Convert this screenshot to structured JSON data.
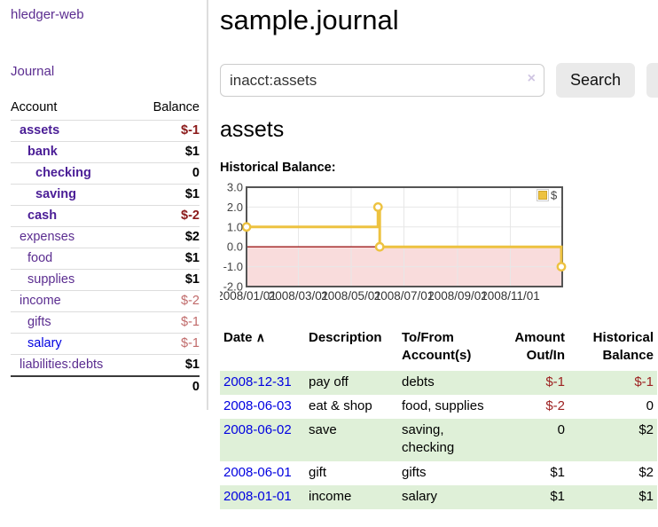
{
  "app": {
    "title": "hledger-web"
  },
  "sidebar": {
    "journal_link": "Journal",
    "accounts": {
      "header_account": "Account",
      "header_balance": "Balance",
      "rows": [
        {
          "name": "assets",
          "balance": "$-1"
        },
        {
          "name": "bank",
          "balance": "$1"
        },
        {
          "name": "checking",
          "balance": "0"
        },
        {
          "name": "saving",
          "balance": "$1"
        },
        {
          "name": "cash",
          "balance": "$-2"
        },
        {
          "name": "expenses",
          "balance": "$2"
        },
        {
          "name": "food",
          "balance": "$1"
        },
        {
          "name": "supplies",
          "balance": "$1"
        },
        {
          "name": "income",
          "balance": "$-2"
        },
        {
          "name": "gifts",
          "balance": "$-1"
        },
        {
          "name": "salary",
          "balance": "$-1"
        },
        {
          "name": "liabilities:debts",
          "balance": "$1"
        }
      ],
      "total": "0"
    }
  },
  "main": {
    "title": "sample.journal",
    "account_heading": "assets",
    "chart_label": "Historical Balance:"
  },
  "search": {
    "value": "inacct:assets",
    "clear_icon": "×",
    "button_label": "Search",
    "help_label": "?"
  },
  "chart_data": {
    "type": "line",
    "subtype": "step-after",
    "title": "Historical Balance",
    "series": [
      {
        "name": "$",
        "color": "#edc240",
        "points": [
          [
            "2008-01-01",
            1
          ],
          [
            "2008-06-01",
            2
          ],
          [
            "2008-06-03",
            0
          ],
          [
            "2008-12-31",
            -1
          ]
        ]
      }
    ],
    "x_range": [
      "2008-01-01",
      "2008-12-31"
    ],
    "x_ticks": [
      "2008/01/01",
      "2008/03/01",
      "2008/05/01",
      "2008/07/01",
      "2008/09/01",
      "2008/11/01"
    ],
    "y_ticks": [
      "3.0",
      "2.0",
      "1.0",
      "0.0",
      "-1.0",
      "-2.0"
    ],
    "ylim": [
      -2,
      3
    ],
    "grid": true,
    "legend": {
      "label": "$",
      "position": "top-right"
    },
    "negative_region_color": "#f9dcdc",
    "zero_line_color": "#9e1d1d",
    "border_color": "#545454"
  },
  "register": {
    "headers": {
      "date": "Date",
      "sort_icon": "∧",
      "description": "Description",
      "accounts": "To/From Account(s)",
      "amount": "Amount Out/In",
      "balance": "Historical Balance"
    },
    "rows": [
      {
        "date": "2008-12-31",
        "description": "pay off",
        "accounts": "debts",
        "amount": "$-1",
        "balance": "$-1"
      },
      {
        "date": "2008-06-03",
        "description": "eat & shop",
        "accounts": "food, supplies",
        "amount": "$-2",
        "balance": "0"
      },
      {
        "date": "2008-06-02",
        "description": "save",
        "accounts": "saving, checking",
        "amount": "0",
        "balance": "$2"
      },
      {
        "date": "2008-06-01",
        "description": "gift",
        "accounts": "gifts",
        "amount": "$1",
        "balance": "$2"
      },
      {
        "date": "2008-01-01",
        "description": "income",
        "accounts": "salary",
        "amount": "$1",
        "balance": "$1"
      }
    ]
  }
}
